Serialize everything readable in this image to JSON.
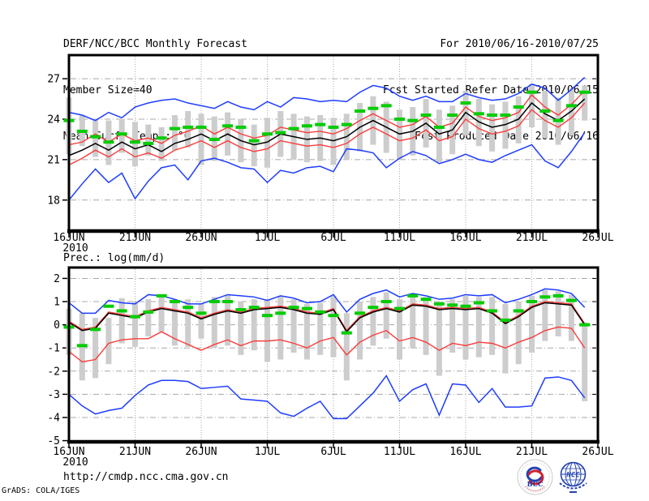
{
  "header": {
    "title": "DERF/NCC/BCC Monthly Forecast",
    "member_size": "Member Size=40",
    "for_range": "For 2010/06/16-2010/07/25",
    "fcst_started": "Fcst Started Refer Date 2010/06/15",
    "fcst_produced": "Fcst Produced Date 2010/06/16"
  },
  "footer": {
    "url": "http://cmdp.ncc.cma.gov.cn",
    "grads_credit": "GrADS: COLA/IGES",
    "bcc_label": "BCC",
    "ncc_label": "NCC"
  },
  "colors": {
    "blue_line": "#1e3cff",
    "red_line": "#fa3c3c",
    "black_line": "#000000",
    "green_marker": "#00cc00",
    "spread_bar": "#cdcdcd",
    "grid": "#a8a8a8",
    "frame": "#000000",
    "logo_blue": "#2242b0",
    "logo_red": "#d02030"
  },
  "chart_data": [
    {
      "name": "mean-surface-temperature-chart",
      "type": "line",
      "title": "Mean Surf. Temp.: °C",
      "x_axis": {
        "tick_labels": [
          "16JUN",
          "21JUN",
          "26JUN",
          "1JUL",
          "6JUL",
          "11JUL",
          "16JUL",
          "21JUL",
          "26JUL"
        ],
        "tick_days": [
          0,
          5,
          10,
          15,
          20,
          25,
          30,
          35,
          40
        ],
        "year_label": "2010",
        "range": [
          0,
          40
        ]
      },
      "y_axis": {
        "tick_values": [
          27,
          24,
          21,
          18
        ],
        "range": [
          15.7,
          28.75
        ]
      },
      "series": [
        {
          "name": "spread-bars",
          "type": "range-bar",
          "color": "#cdcdcd",
          "high": [
            25.6,
            24.3,
            24.0,
            23.9,
            24.0,
            23.8,
            23.6,
            23.4,
            24.3,
            24.6,
            24.4,
            24.2,
            24.5,
            24.0,
            23.6,
            24.1,
            24.6,
            24.4,
            24.2,
            24.3,
            24.1,
            24.4,
            25.2,
            25.7,
            25.3,
            24.7,
            24.9,
            25.5,
            24.7,
            25.0,
            26.1,
            25.5,
            25.1,
            25.3,
            25.7,
            26.6,
            26.1,
            25.6,
            26.3,
            26.5
          ],
          "low": [
            21.4,
            22.0,
            21.2,
            20.6,
            21.5,
            20.5,
            21.3,
            20.9,
            21.7,
            21.9,
            20.6,
            20.9,
            21.3,
            20.8,
            20.5,
            20.4,
            21.2,
            21.0,
            20.8,
            20.9,
            20.6,
            21.0,
            21.6,
            22.1,
            21.5,
            21.0,
            21.3,
            21.9,
            20.8,
            21.4,
            22.8,
            22.0,
            21.6,
            21.8,
            22.2,
            23.4,
            22.6,
            22.1,
            22.8,
            23.9
          ]
        },
        {
          "name": "blue-upper-line",
          "type": "line",
          "color": "#1e3cff",
          "width": 1.5,
          "values": [
            24.5,
            24.3,
            23.9,
            24.5,
            24.1,
            24.9,
            25.2,
            25.4,
            25.5,
            25.2,
            25.0,
            24.8,
            25.3,
            24.9,
            24.7,
            25.3,
            24.9,
            25.6,
            25.5,
            25.3,
            25.4,
            25.3,
            26.0,
            26.5,
            26.3,
            25.7,
            25.4,
            25.7,
            25.3,
            25.3,
            25.9,
            25.6,
            25.4,
            25.5,
            25.9,
            26.6,
            26.3,
            25.4,
            26.2,
            27.1
          ]
        },
        {
          "name": "blue-lower-line",
          "type": "line",
          "color": "#1e3cff",
          "width": 1.5,
          "values": [
            18.0,
            19.2,
            20.3,
            19.3,
            20.0,
            18.1,
            19.4,
            20.4,
            20.6,
            19.5,
            20.9,
            21.1,
            20.8,
            20.4,
            20.3,
            19.3,
            20.2,
            20.0,
            20.4,
            20.5,
            20.1,
            21.8,
            21.7,
            21.5,
            20.4,
            21.1,
            21.6,
            21.3,
            20.7,
            21.0,
            21.4,
            21.0,
            20.8,
            21.3,
            21.7,
            22.1,
            20.9,
            20.4,
            21.6,
            23.0
          ]
        },
        {
          "name": "red-upper-line",
          "type": "line",
          "color": "#fa3c3c",
          "width": 1.4,
          "values": [
            22.1,
            22.3,
            22.9,
            22.3,
            22.9,
            22.4,
            22.6,
            22.2,
            22.8,
            23.1,
            23.5,
            22.9,
            23.4,
            22.9,
            22.6,
            22.8,
            23.4,
            23.2,
            23.0,
            23.1,
            22.9,
            23.3,
            23.9,
            24.4,
            23.9,
            23.4,
            23.6,
            24.2,
            23.4,
            23.7,
            24.9,
            24.2,
            23.9,
            24.1,
            24.5,
            25.8,
            24.9,
            24.3,
            25.1,
            26.1
          ]
        },
        {
          "name": "red-lower-line",
          "type": "line",
          "color": "#fa3c3c",
          "width": 1.4,
          "values": [
            20.6,
            21.1,
            21.7,
            21.2,
            21.8,
            21.2,
            21.5,
            21.1,
            21.7,
            22.0,
            22.4,
            21.9,
            22.4,
            21.9,
            21.6,
            21.8,
            22.4,
            22.2,
            22.0,
            22.1,
            21.9,
            22.2,
            22.9,
            23.4,
            22.9,
            22.4,
            22.6,
            23.2,
            22.4,
            22.7,
            24.0,
            23.3,
            22.9,
            23.1,
            23.5,
            24.7,
            23.9,
            23.4,
            24.1,
            25.2
          ]
        },
        {
          "name": "black-mean-line",
          "type": "line",
          "color": "#000000",
          "width": 1.5,
          "values": [
            21.3,
            21.7,
            22.2,
            21.7,
            22.3,
            21.8,
            22.1,
            21.6,
            22.2,
            22.5,
            22.9,
            22.4,
            22.9,
            22.4,
            22.1,
            22.3,
            22.9,
            22.7,
            22.5,
            22.6,
            22.4,
            22.7,
            23.4,
            23.9,
            23.4,
            22.9,
            23.1,
            23.7,
            22.9,
            23.2,
            24.5,
            23.8,
            23.4,
            23.6,
            24.0,
            25.2,
            24.4,
            23.9,
            24.6,
            25.5
          ]
        },
        {
          "name": "green-dash-markers",
          "type": "dash-marker",
          "color": "#00cc00",
          "values": [
            23.9,
            23.1,
            22.7,
            22.3,
            22.9,
            22.3,
            22.2,
            22.6,
            23.3,
            23.4,
            23.4,
            22.5,
            23.5,
            23.4,
            22.4,
            22.9,
            23.0,
            23.3,
            23.5,
            23.6,
            23.4,
            23.6,
            24.6,
            24.8,
            25.0,
            24.0,
            23.9,
            24.3,
            23.4,
            24.3,
            25.2,
            24.4,
            24.3,
            24.3,
            24.9,
            26.0,
            24.6,
            23.9,
            25.0,
            26.0
          ]
        }
      ]
    },
    {
      "name": "precipitation-chart",
      "type": "line",
      "title": "Prec.: log(mm/d)",
      "x_axis": {
        "tick_labels": [
          "16JUN",
          "21JUN",
          "26JUN",
          "1JUL",
          "6JUL",
          "11JUL",
          "16JUL",
          "21JUL",
          "26JUL"
        ],
        "tick_days": [
          0,
          5,
          10,
          15,
          20,
          25,
          30,
          35,
          40
        ],
        "year_label": "2010",
        "range": [
          0,
          40
        ]
      },
      "y_axis": {
        "tick_values": [
          2,
          1,
          0,
          -1,
          -2,
          -3,
          -4,
          -5
        ],
        "range": [
          -5.05,
          2.47
        ]
      },
      "series": [
        {
          "name": "spread-bars",
          "type": "range-bar",
          "color": "#cdcdcd",
          "high": [
            0.7,
            0.5,
            0.3,
            0.3,
            1.15,
            1.0,
            1.1,
            1.3,
            1.1,
            1.1,
            0.9,
            1.2,
            1.3,
            1.0,
            1.1,
            1.1,
            1.25,
            1.1,
            0.9,
            0.95,
            1.25,
            0.5,
            1.0,
            1.2,
            1.4,
            1.1,
            1.3,
            1.2,
            1.0,
            1.1,
            1.25,
            1.2,
            1.2,
            0.9,
            1.0,
            1.25,
            1.5,
            1.45,
            1.3,
            0.1
          ],
          "low": [
            -1.3,
            -2.4,
            -2.3,
            -1.7,
            -0.8,
            -0.95,
            -0.5,
            -0.3,
            -0.9,
            -0.95,
            -0.6,
            -1.0,
            -0.9,
            -1.3,
            -1.1,
            -1.6,
            -1.5,
            -1.2,
            -1.5,
            -1.3,
            -1.4,
            -2.4,
            -1.5,
            -0.9,
            -0.6,
            -1.5,
            -1.0,
            -1.3,
            -2.2,
            -1.2,
            -1.5,
            -1.4,
            -1.3,
            -2.1,
            -1.7,
            -1.2,
            -0.7,
            -0.5,
            -0.7,
            -3.3
          ]
        },
        {
          "name": "blue-upper-line",
          "type": "line",
          "color": "#1e3cff",
          "width": 1.5,
          "values": [
            0.95,
            0.5,
            0.5,
            1.05,
            0.95,
            0.9,
            1.3,
            1.25,
            1.1,
            0.9,
            0.9,
            1.1,
            1.3,
            1.25,
            1.2,
            1.05,
            1.25,
            1.15,
            0.95,
            1.0,
            1.3,
            0.55,
            1.1,
            1.35,
            1.5,
            1.2,
            1.35,
            1.25,
            1.1,
            1.15,
            1.3,
            1.25,
            1.3,
            0.95,
            1.1,
            1.3,
            1.55,
            1.5,
            1.35,
            0.75
          ]
        },
        {
          "name": "blue-lower-line",
          "type": "line",
          "color": "#1e3cff",
          "width": 1.5,
          "values": [
            -3.0,
            -3.5,
            -3.85,
            -3.7,
            -3.6,
            -3.05,
            -2.6,
            -2.4,
            -2.4,
            -2.45,
            -2.75,
            -2.7,
            -2.65,
            -3.2,
            -3.25,
            -3.3,
            -3.8,
            -3.95,
            -3.6,
            -3.3,
            -4.05,
            -4.05,
            -3.5,
            -2.95,
            -2.2,
            -3.3,
            -2.8,
            -2.55,
            -3.9,
            -2.55,
            -2.6,
            -3.35,
            -2.75,
            -3.55,
            -3.55,
            -3.5,
            -2.3,
            -2.25,
            -2.4,
            -3.15
          ]
        },
        {
          "name": "red-upper-line",
          "type": "line",
          "color": "#fa3c3c",
          "width": 1.4,
          "values": [
            0.15,
            -0.2,
            -0.1,
            0.55,
            0.45,
            0.35,
            0.6,
            0.75,
            0.65,
            0.55,
            0.3,
            0.5,
            0.65,
            0.55,
            0.7,
            0.75,
            0.8,
            0.7,
            0.55,
            0.5,
            0.7,
            -0.25,
            0.35,
            0.6,
            0.75,
            0.6,
            0.9,
            0.85,
            0.7,
            0.75,
            0.7,
            0.75,
            0.55,
            0.1,
            0.4,
            0.8,
            1.0,
            0.95,
            0.9,
            0.05
          ]
        },
        {
          "name": "red-lower-line",
          "type": "line",
          "color": "#fa3c3c",
          "width": 1.4,
          "values": [
            -1.15,
            -1.6,
            -1.5,
            -0.8,
            -0.65,
            -0.6,
            -0.6,
            -0.3,
            -0.6,
            -0.85,
            -1.1,
            -0.85,
            -0.65,
            -0.9,
            -0.7,
            -0.7,
            -0.65,
            -0.8,
            -1.0,
            -0.7,
            -0.55,
            -1.3,
            -0.75,
            -0.45,
            -0.25,
            -0.7,
            -0.55,
            -0.75,
            -1.1,
            -0.8,
            -0.9,
            -0.75,
            -0.8,
            -1.0,
            -0.75,
            -0.55,
            -0.25,
            -0.1,
            -0.15,
            -1.0
          ]
        },
        {
          "name": "black-mean-line",
          "type": "line",
          "color": "#000000",
          "width": 1.5,
          "values": [
            0.1,
            -0.25,
            -0.15,
            0.5,
            0.4,
            0.3,
            0.55,
            0.7,
            0.6,
            0.5,
            0.25,
            0.45,
            0.6,
            0.5,
            0.65,
            0.7,
            0.75,
            0.65,
            0.5,
            0.45,
            0.65,
            -0.3,
            0.3,
            0.55,
            0.7,
            0.55,
            0.85,
            0.8,
            0.65,
            0.7,
            0.65,
            0.7,
            0.5,
            0.05,
            0.35,
            0.75,
            0.95,
            0.9,
            0.85,
            0.0
          ]
        },
        {
          "name": "green-dash-markers",
          "type": "dash-marker",
          "color": "#00cc00",
          "values": [
            -0.1,
            -0.9,
            -0.2,
            0.8,
            0.6,
            0.35,
            0.55,
            1.25,
            1.0,
            0.75,
            0.5,
            1.0,
            1.0,
            0.65,
            0.75,
            0.4,
            0.5,
            0.75,
            0.7,
            0.55,
            0.4,
            -0.35,
            0.5,
            0.75,
            1.0,
            0.7,
            1.25,
            1.1,
            0.9,
            0.85,
            0.8,
            0.95,
            0.6,
            0.2,
            0.6,
            1.0,
            1.2,
            1.25,
            1.05,
            0.0
          ]
        }
      ]
    }
  ]
}
